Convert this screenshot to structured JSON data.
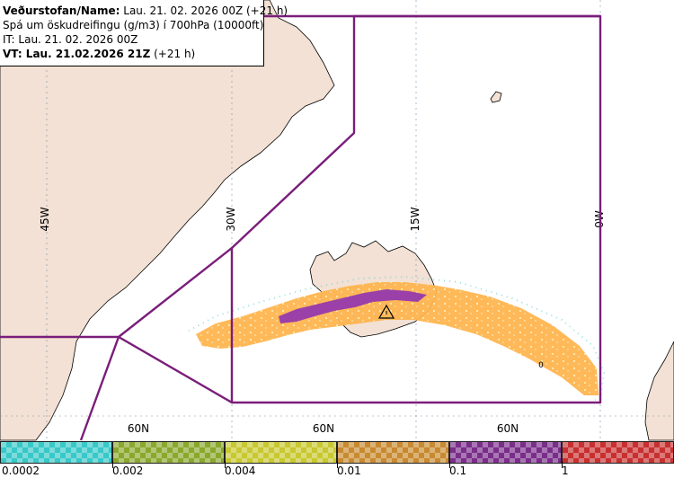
{
  "info": {
    "line1_label": "Veðurstofan/Name:",
    "line1_value": "Lau. 21. 02. 2026 00Z (+21 h)",
    "line2": "Spá um öskudreifingu (g/m3) í 700hPa (10000ft)",
    "line3": "IT: Lau. 21. 02. 2026 00Z",
    "line4_bold": "VT: Lau. 21.02.2026 21Z",
    "line4_rest": " (+21 h)"
  },
  "graticule": {
    "lon_labels": [
      "45W",
      "30W",
      "15W",
      "0W"
    ],
    "lat_labels": [
      "60N",
      "60N",
      "60N"
    ]
  },
  "map_marks": {
    "small_label": "0"
  },
  "legend": {
    "ticks": [
      "0.0002",
      "0.002",
      "0.004",
      "0.01",
      "0.1",
      "1"
    ],
    "colors": [
      "#38c8c8",
      "#8aa82c",
      "#c8c830",
      "#c88a30",
      "#7a2e8a",
      "#c83030"
    ]
  },
  "colors": {
    "land": "#f2e1d4",
    "region_border": "#7a1e7a",
    "ash_light": "#ffb550",
    "ash_dark": "#9b40a8"
  }
}
